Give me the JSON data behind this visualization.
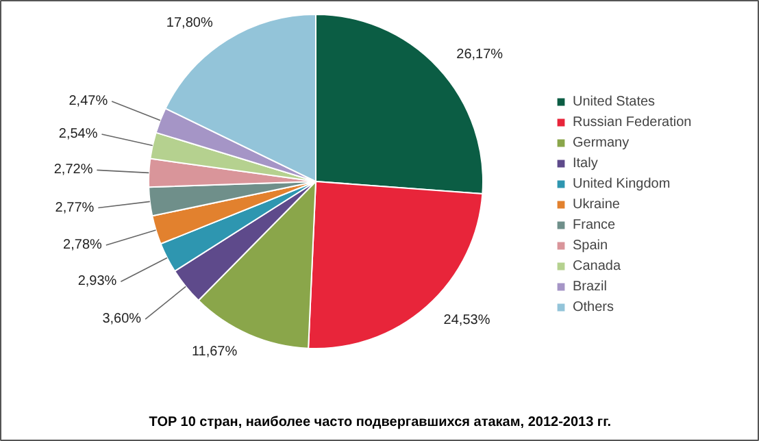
{
  "chart_data": {
    "type": "pie",
    "title": "TOP 10 стран, наиболее часто подвергавшихся атакам, 2012-2013 гг.",
    "categories": [
      "United States",
      "Russian Federation",
      "Germany",
      "Italy",
      "United Kingdom",
      "Ukraine",
      "France",
      "Spain",
      "Canada",
      "Brazil",
      "Others"
    ],
    "values": [
      26.17,
      24.53,
      11.67,
      3.6,
      2.93,
      2.78,
      2.77,
      2.72,
      2.54,
      2.47,
      17.8
    ],
    "value_labels": [
      "26,17%",
      "24,53%",
      "11,67%",
      "3,60%",
      "2,93%",
      "2,78%",
      "2,77%",
      "2,72%",
      "2,54%",
      "2,47%",
      "17,80%"
    ],
    "colors": [
      "#0b5d44",
      "#e8253a",
      "#8aa64a",
      "#5e4a8b",
      "#2e96b0",
      "#e2812e",
      "#6f8f8a",
      "#d9959a",
      "#b5d18f",
      "#a595c6",
      "#93c4d9"
    ],
    "legend": "right"
  }
}
